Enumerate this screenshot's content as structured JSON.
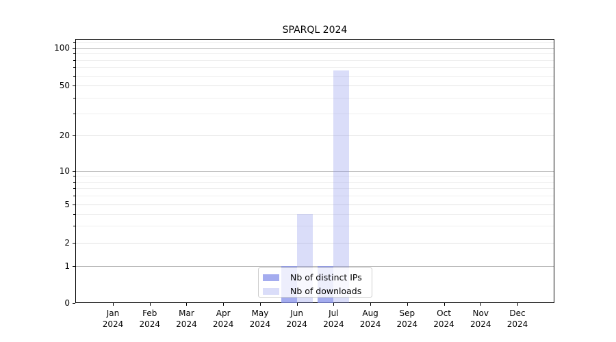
{
  "chart_data": {
    "type": "bar",
    "title": "SPARQL 2024",
    "categories": [
      "Jan",
      "Feb",
      "Mar",
      "Apr",
      "May",
      "Jun",
      "Jul",
      "Aug",
      "Sep",
      "Oct",
      "Nov",
      "Dec"
    ],
    "x_year": "2024",
    "series": [
      {
        "name": "Nb of distinct IPs",
        "values": [
          0,
          0,
          0,
          0,
          0,
          1,
          1,
          0,
          0,
          0,
          0,
          0
        ],
        "alpha": 0.75
      },
      {
        "name": "Nb of downloads",
        "values": [
          0,
          0,
          0,
          0,
          0,
          4,
          66,
          0,
          0,
          0,
          0,
          0
        ],
        "alpha": 0.3
      }
    ],
    "bar_base_color": "#8690ea",
    "y_axis": {
      "scale": "quasi-log",
      "labeled_ticks": [
        0,
        1,
        2,
        5,
        10,
        20,
        50,
        100
      ],
      "power_ticks": [
        1,
        10,
        100
      ],
      "minor_gridlines": [
        3,
        4,
        6,
        7,
        8,
        9,
        30,
        40,
        60,
        70,
        80,
        90,
        110
      ],
      "scale_anchors": [
        [
          0,
          443
        ],
        [
          1,
          389
        ],
        [
          2,
          355
        ],
        [
          5,
          299
        ],
        [
          10,
          250
        ],
        [
          20,
          198
        ],
        [
          50,
          125
        ],
        [
          100,
          70
        ]
      ],
      "range": [
        0,
        110
      ]
    },
    "grid": true,
    "legend": {
      "position": "bottom-center"
    },
    "colors": {
      "major_grid": "#b4b4b4",
      "sub_grid": "#e2e2e2",
      "minor_grid": "#eeeeee",
      "spine": "#000000",
      "legend_border": "#cccccc"
    }
  }
}
